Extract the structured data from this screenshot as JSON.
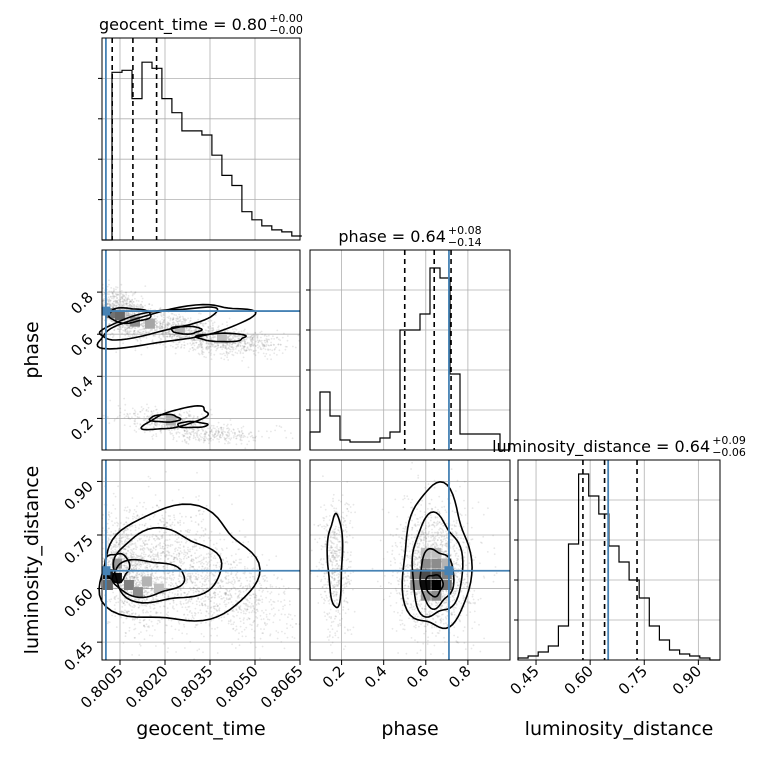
{
  "chart_data": {
    "type": "corner",
    "parameters": [
      "geocent_time",
      "phase",
      "luminosity_distance"
    ],
    "truths": {
      "geocent_time": 0.80003,
      "phase": 0.71,
      "luminosity_distance": 0.65
    },
    "ranges": {
      "geocent_time": [
        0.7999,
        0.8065
      ],
      "phase": [
        0.05,
        1.0
      ],
      "luminosity_distance": [
        0.4,
        0.96
      ]
    },
    "ticks": {
      "geocent_time": [
        "0.8005",
        "0.8020",
        "0.8035",
        "0.8050",
        "0.8065"
      ],
      "phase": [
        "0.2",
        "0.4",
        "0.6",
        "0.8"
      ],
      "luminosity_distance": [
        "0.45",
        "0.60",
        "0.75",
        "0.90"
      ]
    },
    "tick_values": {
      "geocent_time": [
        0.8005,
        0.802,
        0.8035,
        0.805,
        0.8065
      ],
      "phase": [
        0.2,
        0.4,
        0.6,
        0.8
      ],
      "luminosity_distance": [
        0.45,
        0.6,
        0.75,
        0.9
      ]
    },
    "axis_labels": {
      "geocent_time": "geocent_time",
      "phase": "phase",
      "luminosity_distance": "luminosity_distance"
    },
    "titles": [
      {
        "param": "geocent_time",
        "prefix": "geocent_time = 0.80",
        "plus": "+0.00",
        "minus": "−0.00"
      },
      {
        "param": "phase",
        "prefix": "phase = 0.64",
        "plus": "+0.08",
        "minus": "−0.14"
      },
      {
        "param": "luminosity_distance",
        "prefix": "luminosity_distance = 0.64",
        "plus": "+0.09",
        "minus": "−0.06"
      }
    ],
    "quantiles": {
      "geocent_time": [
        0.80024,
        0.80093,
        0.80172
      ],
      "phase": [
        0.5,
        0.64,
        0.72
      ],
      "luminosity_distance": [
        0.58,
        0.64,
        0.73
      ]
    },
    "histograms": {
      "geocent_time": {
        "edges_start": 0.7999,
        "bin_width": 0.000333,
        "counts": [
          0.0,
          0.83,
          0.84,
          0.7,
          0.88,
          0.85,
          0.7,
          0.63,
          0.54,
          0.54,
          0.52,
          0.42,
          0.32,
          0.27,
          0.14,
          0.1,
          0.07,
          0.05,
          0.04,
          0.02
        ]
      },
      "phase": {
        "edges_start": 0.05,
        "bin_width": 0.0475,
        "counts": [
          0.09,
          0.29,
          0.17,
          0.05,
          0.04,
          0.04,
          0.04,
          0.06,
          0.09,
          0.6,
          0.6,
          0.68,
          0.91,
          0.86,
          0.38,
          0.08,
          0.08,
          0.08,
          0.08,
          0.0
        ]
      },
      "luminosity_distance": {
        "edges_start": 0.4,
        "bin_width": 0.028,
        "counts": [
          0.01,
          0.02,
          0.04,
          0.07,
          0.17,
          0.58,
          0.93,
          0.82,
          0.73,
          0.57,
          0.49,
          0.4,
          0.31,
          0.17,
          0.1,
          0.05,
          0.03,
          0.02,
          0.01,
          0.0
        ]
      }
    },
    "scatter_clusters": [
      {
        "x": "geocent_time",
        "y": "phase",
        "blobs": [
          {
            "cx": 0.8006,
            "cy": 0.7,
            "sx": 0.00045,
            "sy": 0.06,
            "n": 900,
            "rho": -0.5
          },
          {
            "cx": 0.8025,
            "cy": 0.62,
            "sx": 0.0011,
            "sy": 0.05,
            "n": 900,
            "rho": -0.6
          },
          {
            "cx": 0.8045,
            "cy": 0.56,
            "sx": 0.0008,
            "sy": 0.03,
            "n": 400,
            "rho": 0
          },
          {
            "cx": 0.8022,
            "cy": 0.18,
            "sx": 0.001,
            "sy": 0.04,
            "n": 400,
            "rho": -0.6
          },
          {
            "cx": 0.8038,
            "cy": 0.12,
            "sx": 0.001,
            "sy": 0.02,
            "n": 200,
            "rho": 0
          }
        ]
      },
      {
        "x": "geocent_time",
        "y": "luminosity_distance",
        "blobs": [
          {
            "cx": 0.8008,
            "cy": 0.64,
            "sx": 0.0005,
            "sy": 0.07,
            "n": 900,
            "rho": -0.4
          },
          {
            "cx": 0.8022,
            "cy": 0.66,
            "sx": 0.0012,
            "sy": 0.09,
            "n": 1200,
            "rho": -0.3
          },
          {
            "cx": 0.8045,
            "cy": 0.58,
            "sx": 0.001,
            "sy": 0.06,
            "n": 500,
            "rho": -0.3
          }
        ]
      },
      {
        "x": "phase",
        "y": "luminosity_distance",
        "blobs": [
          {
            "cx": 0.17,
            "cy": 0.66,
            "sx": 0.04,
            "sy": 0.1,
            "n": 500,
            "rho": 0
          },
          {
            "cx": 0.64,
            "cy": 0.65,
            "sx": 0.09,
            "sy": 0.09,
            "n": 1600,
            "rho": 0
          }
        ]
      }
    ],
    "contours": [
      {
        "x": "geocent_time",
        "y": "phase",
        "shapes": [
          {
            "cx": 0.8023,
            "cy": 0.64,
            "rx": 0.0026,
            "ry": 0.075,
            "rot": -0.18
          },
          {
            "cx": 0.8017,
            "cy": 0.655,
            "rx": 0.002,
            "ry": 0.05,
            "rot": -0.2
          },
          {
            "cx": 0.8008,
            "cy": 0.69,
            "rx": 0.0007,
            "ry": 0.035,
            "rot": 0
          },
          {
            "cx": 0.8027,
            "cy": 0.62,
            "rx": 0.0005,
            "ry": 0.018,
            "rot": 0
          },
          {
            "cx": 0.8039,
            "cy": 0.585,
            "rx": 0.0008,
            "ry": 0.02,
            "rot": 0
          },
          {
            "cx": 0.8024,
            "cy": 0.2,
            "rx": 0.0011,
            "ry": 0.04,
            "rot": -0.25
          },
          {
            "cx": 0.802,
            "cy": 0.2,
            "rx": 0.0005,
            "ry": 0.018,
            "rot": 0
          },
          {
            "cx": 0.8029,
            "cy": 0.17,
            "rx": 0.0005,
            "ry": 0.014,
            "rot": 0
          }
        ]
      },
      {
        "x": "geocent_time",
        "y": "luminosity_distance",
        "shapes": [
          {
            "cx": 0.8024,
            "cy": 0.66,
            "rx": 0.0026,
            "ry": 0.16,
            "rot": -0.05
          },
          {
            "cx": 0.802,
            "cy": 0.66,
            "rx": 0.0018,
            "ry": 0.1,
            "rot": 0
          },
          {
            "cx": 0.8014,
            "cy": 0.63,
            "rx": 0.0012,
            "ry": 0.05,
            "rot": 0
          },
          {
            "cx": 0.8004,
            "cy": 0.66,
            "rx": 0.0004,
            "ry": 0.04,
            "rot": 0
          }
        ]
      },
      {
        "x": "phase",
        "y": "luminosity_distance",
        "shapes": [
          {
            "cx": 0.65,
            "cy": 0.68,
            "rx": 0.16,
            "ry": 0.2,
            "rot": 0
          },
          {
            "cx": 0.65,
            "cy": 0.66,
            "rx": 0.12,
            "ry": 0.14,
            "rot": 0
          },
          {
            "cx": 0.65,
            "cy": 0.63,
            "rx": 0.08,
            "ry": 0.08,
            "rot": 0
          },
          {
            "cx": 0.64,
            "cy": 0.61,
            "rx": 0.04,
            "ry": 0.03,
            "rot": 0
          },
          {
            "cx": 0.17,
            "cy": 0.68,
            "rx": 0.035,
            "ry": 0.13,
            "rot": 0
          }
        ]
      }
    ],
    "density_cells": [
      {
        "x": "phase",
        "y": "luminosity_distance",
        "cells": [
          {
            "x": 0.6,
            "y": 0.61,
            "v": 0.95
          },
          {
            "x": 0.65,
            "y": 0.61,
            "v": 1.0
          },
          {
            "x": 0.6,
            "y": 0.64,
            "v": 0.7
          },
          {
            "x": 0.65,
            "y": 0.64,
            "v": 0.75
          },
          {
            "x": 0.55,
            "y": 0.64,
            "v": 0.5
          },
          {
            "x": 0.7,
            "y": 0.64,
            "v": 0.5
          },
          {
            "x": 0.6,
            "y": 0.67,
            "v": 0.45
          },
          {
            "x": 0.65,
            "y": 0.67,
            "v": 0.45
          },
          {
            "x": 0.55,
            "y": 0.61,
            "v": 0.45
          },
          {
            "x": 0.7,
            "y": 0.61,
            "v": 0.55
          },
          {
            "x": 0.65,
            "y": 0.58,
            "v": 0.45
          },
          {
            "x": 0.6,
            "y": 0.58,
            "v": 0.4
          },
          {
            "x": 0.65,
            "y": 0.7,
            "v": 0.25
          },
          {
            "x": 0.6,
            "y": 0.7,
            "v": 0.25
          },
          {
            "x": 0.7,
            "y": 0.67,
            "v": 0.3
          }
        ]
      },
      {
        "x": "geocent_time",
        "y": "luminosity_distance",
        "cells": [
          {
            "x": 0.8001,
            "y": 0.64,
            "v": 0.9
          },
          {
            "x": 0.8004,
            "y": 0.63,
            "v": 0.95
          },
          {
            "x": 0.8001,
            "y": 0.61,
            "v": 0.6
          },
          {
            "x": 0.8008,
            "y": 0.61,
            "v": 0.5
          },
          {
            "x": 0.8011,
            "y": 0.59,
            "v": 0.45
          },
          {
            "x": 0.8004,
            "y": 0.67,
            "v": 0.4
          },
          {
            "x": 0.8014,
            "y": 0.62,
            "v": 0.3
          },
          {
            "x": 0.8018,
            "y": 0.6,
            "v": 0.25
          }
        ]
      },
      {
        "x": "geocent_time",
        "y": "phase",
        "cells": [
          {
            "x": 0.8002,
            "y": 0.7,
            "v": 0.55
          },
          {
            "x": 0.8005,
            "y": 0.69,
            "v": 0.6
          },
          {
            "x": 0.801,
            "y": 0.66,
            "v": 0.45
          },
          {
            "x": 0.8015,
            "y": 0.65,
            "v": 0.35
          },
          {
            "x": 0.8025,
            "y": 0.62,
            "v": 0.3
          },
          {
            "x": 0.8039,
            "y": 0.58,
            "v": 0.25
          },
          {
            "x": 0.8022,
            "y": 0.19,
            "v": 0.3
          }
        ]
      }
    ],
    "truth_color": "#4682b4",
    "hist_color": "#000000",
    "grid": true
  }
}
